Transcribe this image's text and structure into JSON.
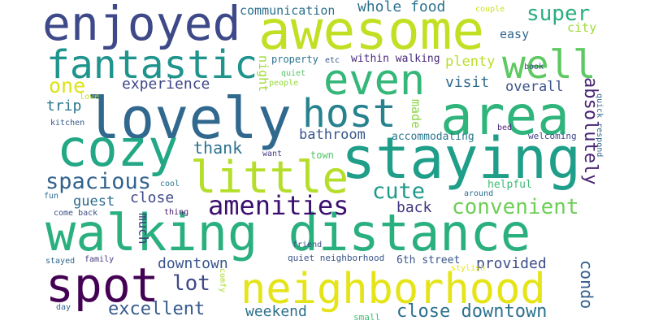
{
  "words": [
    {
      "text": "awesome",
      "color": "#c2df23"
    },
    {
      "text": "enjoyed",
      "color": "#3e4989"
    },
    {
      "text": "fantastic",
      "color": "#1f948c"
    },
    {
      "text": "well",
      "color": "#5ec962"
    },
    {
      "text": "even",
      "color": "#35b779"
    },
    {
      "text": "lovely",
      "color": "#31688e"
    },
    {
      "text": "area",
      "color": "#2fb47c"
    },
    {
      "text": "host",
      "color": "#26828e"
    },
    {
      "text": "cozy",
      "color": "#22a884"
    },
    {
      "text": "staying",
      "color": "#1f9e89"
    },
    {
      "text": "little",
      "color": "#b5de2b"
    },
    {
      "text": "walking distance",
      "color": "#2ab07f"
    },
    {
      "text": "spot",
      "color": "#440154"
    },
    {
      "text": "neighborhood",
      "color": "#e5e419"
    },
    {
      "text": "amenities",
      "color": "#3b0f70"
    },
    {
      "text": "spacious",
      "color": "#33638d"
    },
    {
      "text": "convenient",
      "color": "#6ece58"
    },
    {
      "text": "cute",
      "color": "#1f9a8a"
    },
    {
      "text": "super",
      "color": "#29af7f"
    },
    {
      "text": "one",
      "color": "#dde318"
    },
    {
      "text": "experience",
      "color": "#3f4788"
    },
    {
      "text": "thank",
      "color": "#2c728e"
    },
    {
      "text": "bathroom",
      "color": "#38588c"
    },
    {
      "text": "excellent",
      "color": "#375a8c"
    },
    {
      "text": "downtown",
      "color": "#39568c"
    },
    {
      "text": "weekend",
      "color": "#2e6f8e"
    },
    {
      "text": "close downtown",
      "color": "#2d718e"
    },
    {
      "text": "lot",
      "color": "#3e4a89"
    },
    {
      "text": "provided",
      "color": "#3d4d8a"
    },
    {
      "text": "condo",
      "color": "#34608d"
    },
    {
      "text": "absolutely",
      "color": "#482475"
    },
    {
      "text": "back",
      "color": "#453781"
    },
    {
      "text": "close",
      "color": "#3f4889"
    },
    {
      "text": "guest",
      "color": "#2f6c8e"
    },
    {
      "text": "much",
      "color": "#453882"
    },
    {
      "text": "trip",
      "color": "#2a768e"
    },
    {
      "text": "visit",
      "color": "#306a8e"
    },
    {
      "text": "overall",
      "color": "#3b528b"
    },
    {
      "text": "plenty",
      "color": "#b8de29"
    },
    {
      "text": "easy",
      "color": "#31678e"
    },
    {
      "text": "whole food",
      "color": "#2c738e"
    },
    {
      "text": "communication",
      "color": "#2d708e"
    },
    {
      "text": "city",
      "color": "#a0da39"
    },
    {
      "text": "made",
      "color": "#8bd646"
    },
    {
      "text": "accommodating",
      "color": "#2a788e"
    },
    {
      "text": "night",
      "color": "#a2da37"
    },
    {
      "text": "property",
      "color": "#2c738e"
    },
    {
      "text": "within walking",
      "color": "#482878"
    },
    {
      "text": "etc",
      "color": "#37598c"
    },
    {
      "text": "quiet",
      "color": "#54c568"
    },
    {
      "text": "people",
      "color": "#95d840"
    },
    {
      "text": "town",
      "color": "#52c569"
    },
    {
      "text": "want",
      "color": "#433e85"
    },
    {
      "text": "welcoming",
      "color": "#3f4889"
    },
    {
      "text": "helpful",
      "color": "#3cbb75"
    },
    {
      "text": "around",
      "color": "#2d708e"
    },
    {
      "text": "bed",
      "color": "#482475"
    },
    {
      "text": "quick respond",
      "color": "#31668e"
    },
    {
      "text": "couple",
      "color": "#cde11d"
    },
    {
      "text": "book",
      "color": "#404588"
    },
    {
      "text": "love",
      "color": "#bddf26"
    },
    {
      "text": "kitchen",
      "color": "#38598c"
    },
    {
      "text": "6th street",
      "color": "#3a548c"
    },
    {
      "text": "quiet neighborhood",
      "color": "#3a538b"
    },
    {
      "text": "stylish",
      "color": "#e7e419"
    },
    {
      "text": "small",
      "color": "#3fbc73"
    },
    {
      "text": "friend",
      "color": "#3e4c8a"
    },
    {
      "text": "comfy",
      "color": "#addc30"
    },
    {
      "text": "family",
      "color": "#443a83"
    },
    {
      "text": "day",
      "color": "#33638d"
    },
    {
      "text": "stayed",
      "color": "#31678e"
    },
    {
      "text": "come back",
      "color": "#3c4f8a"
    },
    {
      "text": "fun",
      "color": "#2e6e8e"
    },
    {
      "text": "thing",
      "color": "#481b6d"
    },
    {
      "text": "cool",
      "color": "#2a768e"
    }
  ]
}
